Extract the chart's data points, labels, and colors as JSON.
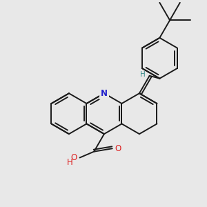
{
  "background_color": "#e8e8e8",
  "bond_color": "#1a1a1a",
  "bond_width": 1.4,
  "N_color": "#2222cc",
  "O_color": "#dd2222",
  "H_color": "#338888",
  "figsize": [
    3.0,
    3.0
  ],
  "dpi": 100,
  "xlim": [
    -1.5,
    8.5
  ],
  "ylim": [
    -4.5,
    5.5
  ]
}
